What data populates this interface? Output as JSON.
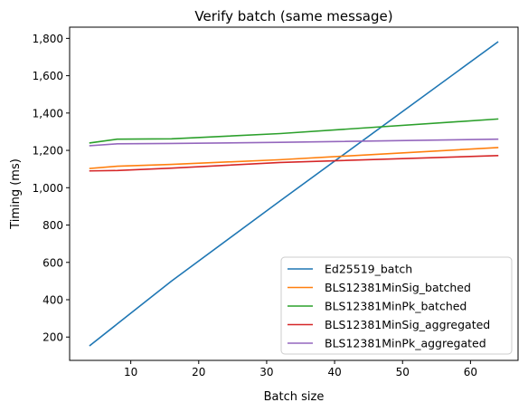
{
  "chart_data": {
    "type": "line",
    "title": "Verify batch (same message)",
    "xlabel": "Batch size",
    "ylabel": "Timing (ms)",
    "xlim": [
      1,
      67
    ],
    "ylim": [
      75,
      1860
    ],
    "xticks": [
      10,
      20,
      30,
      40,
      50,
      60
    ],
    "xtick_labels": [
      "10",
      "20",
      "30",
      "40",
      "50",
      "60"
    ],
    "yticks": [
      200,
      400,
      600,
      800,
      1000,
      1200,
      1400,
      1600,
      1800
    ],
    "ytick_labels": [
      "200",
      "400",
      "600",
      "800",
      "1,000",
      "1,200",
      "1,400",
      "1,600",
      "1,800"
    ],
    "grid": false,
    "legend_position": "bottom-right",
    "series": [
      {
        "name": "Ed25519_batch",
        "color": "#1f77b4",
        "x": [
          4,
          8,
          16,
          32,
          64
        ],
        "values": [
          155,
          270,
          500,
          930,
          1780
        ]
      },
      {
        "name": "BLS12381MinSig_batched",
        "color": "#ff7f0e",
        "x": [
          4,
          8,
          16,
          32,
          64
        ],
        "values": [
          1103,
          1115,
          1125,
          1150,
          1215
        ]
      },
      {
        "name": "BLS12381MinPk_batched",
        "color": "#2ca02c",
        "x": [
          4,
          8,
          16,
          32,
          64
        ],
        "values": [
          1240,
          1260,
          1262,
          1290,
          1368
        ]
      },
      {
        "name": "BLS12381MinSig_aggregated",
        "color": "#d62728",
        "x": [
          4,
          8,
          16,
          32,
          64
        ],
        "values": [
          1090,
          1092,
          1105,
          1135,
          1172
        ]
      },
      {
        "name": "BLS12381MinPk_aggregated",
        "color": "#9467bd",
        "x": [
          4,
          8,
          16,
          32,
          64
        ],
        "values": [
          1225,
          1235,
          1237,
          1243,
          1260
        ]
      }
    ]
  }
}
